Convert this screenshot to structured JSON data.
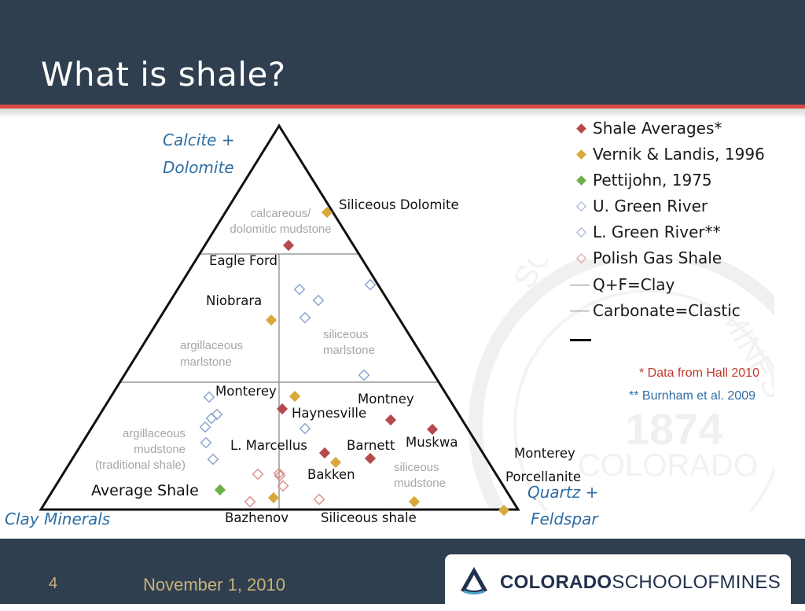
{
  "slide": {
    "title": "What is shale?",
    "page_number": "4",
    "date": "November 1, 2010"
  },
  "logo": {
    "bold": "COLORADO",
    "light": "SCHOOLOFMINES"
  },
  "seal": {
    "year": "1874",
    "school": "SCHOOL",
    "mines": "MINES",
    "colorado": "COLORADO"
  },
  "ternary": {
    "vertex_labels": {
      "top_line1": "Calcite +",
      "top_line2": "Dolomite",
      "left": "Clay Minerals",
      "right_line1": "Quartz +",
      "right_line2": "Feldspar"
    },
    "region_labels": {
      "calc_dolo_1": "calcareous/",
      "calc_dolo_2": "dolomitic mudstone",
      "arg_marl_1": "argillaceous",
      "arg_marl_2": "marlstone",
      "sil_marl_1": "siliceous",
      "sil_marl_2": "marlstone",
      "arg_mud_1": "argillaceous",
      "arg_mud_2": "mudstone",
      "arg_mud_3": "(traditional shale)",
      "sil_mud_1": "siliceous",
      "sil_mud_2": "mudstone"
    },
    "point_labels": {
      "siliceous_dolomite": "Siliceous Dolomite",
      "eagle_ford": "Eagle Ford",
      "niobrara": "Niobrara",
      "monterey": "Monterey",
      "haynesville": "Haynesville",
      "montney": "Montney",
      "muskwa": "Muskwa",
      "l_marcellus": "L. Marcellus",
      "barnett": "Barnett",
      "bakken": "Bakken",
      "average_shale": "Average Shale",
      "bazhenov": "Bazhenov",
      "siliceous_shale": "Siliceous shale",
      "monterey_porcellanite_1": "Monterey",
      "monterey_porcellanite_2": "Porcellanite"
    }
  },
  "legend": {
    "items": [
      {
        "label": "Shale Averages*",
        "symbol": "filled-diamond",
        "color": "#b54a4c"
      },
      {
        "label": "Vernik & Landis, 1996",
        "symbol": "filled-diamond",
        "color": "#d9a83b"
      },
      {
        "label": "Pettijohn, 1975",
        "symbol": "filled-diamond",
        "color": "#6cb04a"
      },
      {
        "label": "U. Green River",
        "symbol": "open-diamond",
        "color": "#8ea6cf"
      },
      {
        "label": "L. Green River**",
        "symbol": "open-diamond",
        "color": "#8ea6cf"
      },
      {
        "label": "Polish Gas Shale",
        "symbol": "open-diamond",
        "color": "#d9928f"
      },
      {
        "label": "Q+F=Clay",
        "symbol": "line",
        "color": "#888888"
      },
      {
        "label": "Carbonate=Clastic",
        "symbol": "line",
        "color": "#888888"
      }
    ]
  },
  "notes": {
    "hall": "* Data from Hall 2010",
    "burnham": "** Burnham et al. 2009"
  },
  "colors": {
    "header_bg": "#2f3f4f",
    "accent_red": "#d94a42",
    "vertex_label_blue": "#2e6da4",
    "region_label_gray": "#a6a6a6",
    "note_red": "#c0392b",
    "note_blue": "#2e6da4",
    "footer_gold": "#c8b27a"
  }
}
